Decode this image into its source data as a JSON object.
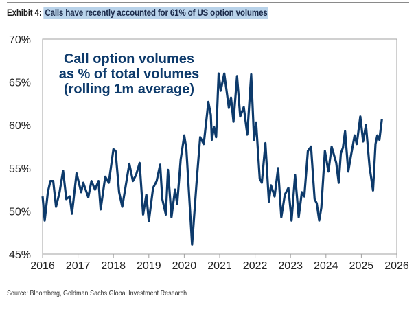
{
  "exhibit_label": "Exhibit 4:",
  "exhibit_title": "Calls have recently accounted for 61% of US option volumes",
  "source": "Source: Bloomberg, Goldman Sachs Global Investment Research",
  "colors": {
    "line": "#0d3a6b",
    "annotation": "#0d3a6b",
    "frame": "#a0a0a0"
  },
  "chart_data": {
    "type": "line",
    "title": "",
    "annotation": [
      "Call option volumes",
      "as % of total volumes",
      "(rolling 1m average)"
    ],
    "xlabel": "",
    "ylabel": "",
    "xlim": [
      2016,
      2026
    ],
    "ylim": [
      45,
      70
    ],
    "x_ticks": [
      2016,
      2017,
      2018,
      2019,
      2020,
      2021,
      2022,
      2023,
      2024,
      2025,
      2026
    ],
    "x_tick_labels": [
      "2016",
      "2017",
      "2018",
      "2019",
      "2020",
      "2021",
      "2022",
      "2023",
      "2024",
      "2025",
      "2026"
    ],
    "y_ticks": [
      45,
      50,
      55,
      60,
      65,
      70
    ],
    "y_tick_labels": [
      "45%",
      "50%",
      "55%",
      "60%",
      "65%",
      "70%"
    ],
    "grid": false,
    "series": [
      {
        "name": "Call option volumes as % of total volumes (rolling 1m average)",
        "x": [
          2016.0,
          2016.06,
          2016.15,
          2016.22,
          2016.3,
          2016.38,
          2016.48,
          2016.58,
          2016.67,
          2016.77,
          2016.83,
          2016.96,
          2017.09,
          2017.15,
          2017.29,
          2017.38,
          2017.48,
          2017.58,
          2017.64,
          2017.77,
          2017.87,
          2018.0,
          2018.06,
          2018.16,
          2018.25,
          2018.45,
          2018.55,
          2018.64,
          2018.74,
          2018.84,
          2018.93,
          2019.0,
          2019.12,
          2019.22,
          2019.32,
          2019.38,
          2019.48,
          2019.54,
          2019.64,
          2019.74,
          2019.8,
          2019.9,
          2020.0,
          2020.06,
          2020.22,
          2020.35,
          2020.45,
          2020.55,
          2020.65,
          2020.68,
          2020.75,
          2020.78,
          2020.84,
          2020.9,
          2020.97,
          2021.03,
          2021.13,
          2021.26,
          2021.32,
          2021.39,
          2021.49,
          2021.58,
          2021.68,
          2021.78,
          2021.89,
          2021.97,
          2022.03,
          2022.13,
          2022.19,
          2022.29,
          2022.39,
          2022.45,
          2022.55,
          2022.65,
          2022.74,
          2022.84,
          2022.94,
          2023.03,
          2023.13,
          2023.23,
          2023.32,
          2023.39,
          2023.49,
          2023.58,
          2023.68,
          2023.74,
          2023.81,
          2023.87,
          2023.97,
          2024.07,
          2024.16,
          2024.29,
          2024.36,
          2024.42,
          2024.48,
          2024.54,
          2024.63,
          2024.71,
          2024.81,
          2024.87,
          2024.97,
          2025.05,
          2025.13,
          2025.23,
          2025.33,
          2025.4,
          2025.45,
          2025.51,
          2025.58
        ],
        "y": [
          51.7,
          48.9,
          52.2,
          53.5,
          53.5,
          50.5,
          52.2,
          54.7,
          51.4,
          51.7,
          49.7,
          54.4,
          52.2,
          53.3,
          51.6,
          53.5,
          52.5,
          53.5,
          50.2,
          54.0,
          53.3,
          57.2,
          57.0,
          52.2,
          50.5,
          55.5,
          53.5,
          54.2,
          55.6,
          49.6,
          51.9,
          48.8,
          52.7,
          53.5,
          55.4,
          51.4,
          49.6,
          54.8,
          49.3,
          52.5,
          50.8,
          56.0,
          58.8,
          57.2,
          46.1,
          53.5,
          58.6,
          57.8,
          61.5,
          62.7,
          61.2,
          58.3,
          59.8,
          58.6,
          66.0,
          64.0,
          66.0,
          62.0,
          63.2,
          60.4,
          65.7,
          61.0,
          62.1,
          58.9,
          65.9,
          58.3,
          60.3,
          53.8,
          53.3,
          57.9,
          51.1,
          53.0,
          51.7,
          55.0,
          49.3,
          51.9,
          52.7,
          48.9,
          54.2,
          49.3,
          52.2,
          51.7,
          57.0,
          57.5,
          51.4,
          50.9,
          48.9,
          50.4,
          57.0,
          54.6,
          57.5,
          55.6,
          53.3,
          56.7,
          57.4,
          59.3,
          54.6,
          56.5,
          58.8,
          57.8,
          61.0,
          58.1,
          60.0,
          55.2,
          52.4,
          57.8,
          58.8,
          58.3,
          60.7
        ]
      }
    ]
  }
}
